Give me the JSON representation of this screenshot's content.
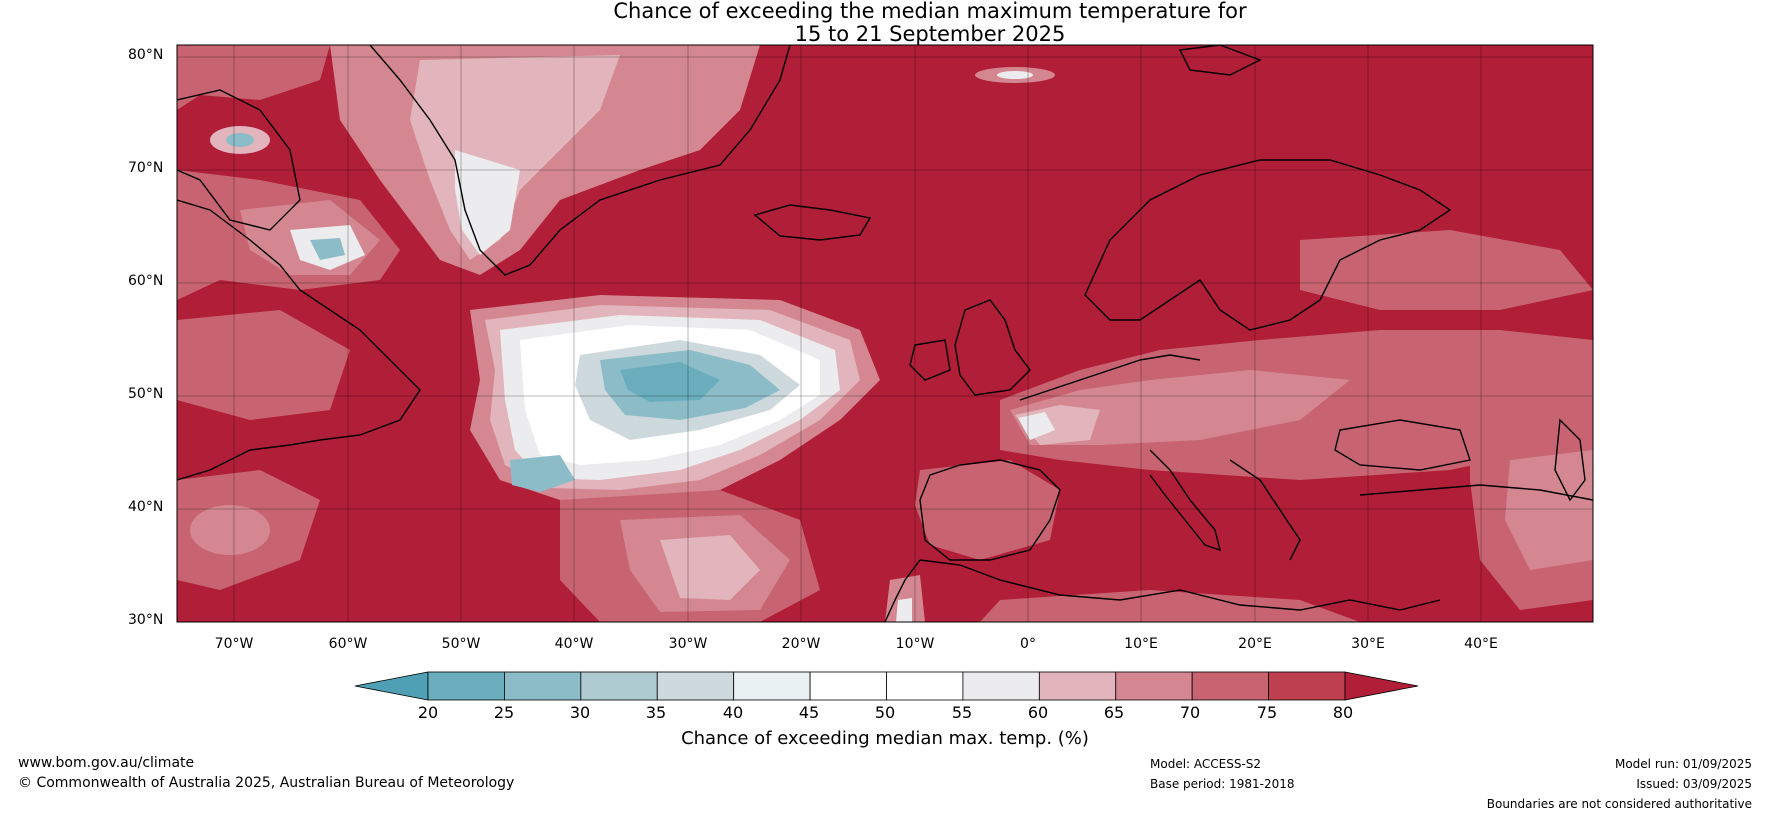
{
  "title": {
    "line1": "Chance of exceeding the median maximum temperature for",
    "line2": "15 to 21 September 2025"
  },
  "map": {
    "lat_labels": [
      "80°N",
      "70°N",
      "60°N",
      "50°N",
      "40°N",
      "30°N"
    ],
    "lon_labels": [
      "70°W",
      "60°W",
      "50°W",
      "40°W",
      "30°W",
      "20°W",
      "10°W",
      "0°",
      "10°E",
      "20°E",
      "30°E",
      "40°E"
    ],
    "background_color": "#b01e37"
  },
  "colorbar": {
    "label": "Chance of exceeding median max. temp. (%)",
    "ticks": [
      "20",
      "25",
      "30",
      "35",
      "40",
      "45",
      "50",
      "55",
      "60",
      "65",
      "70",
      "75",
      "80"
    ],
    "colors": [
      "#4fa0b4",
      "#6aaebe",
      "#8cbcc8",
      "#aecbd2",
      "#cdd9dd",
      "#e9f1f3",
      "#ffffff",
      "#ffffff",
      "#ececee",
      "#e2b4bb",
      "#d48791",
      "#c86472",
      "#bd3f50",
      "#b01e37"
    ]
  },
  "footer": {
    "website": "www.bom.gov.au/climate",
    "copyright": "© Commonwealth of Australia 2025, Australian Bureau of Meteorology",
    "model": "Model: ACCESS-S2",
    "base_period": "Base period: 1981-2018",
    "model_run": "Model run: 01/09/2025",
    "issued": "Issued: 03/09/2025",
    "boundaries": "Boundaries are not considered authoritative"
  }
}
